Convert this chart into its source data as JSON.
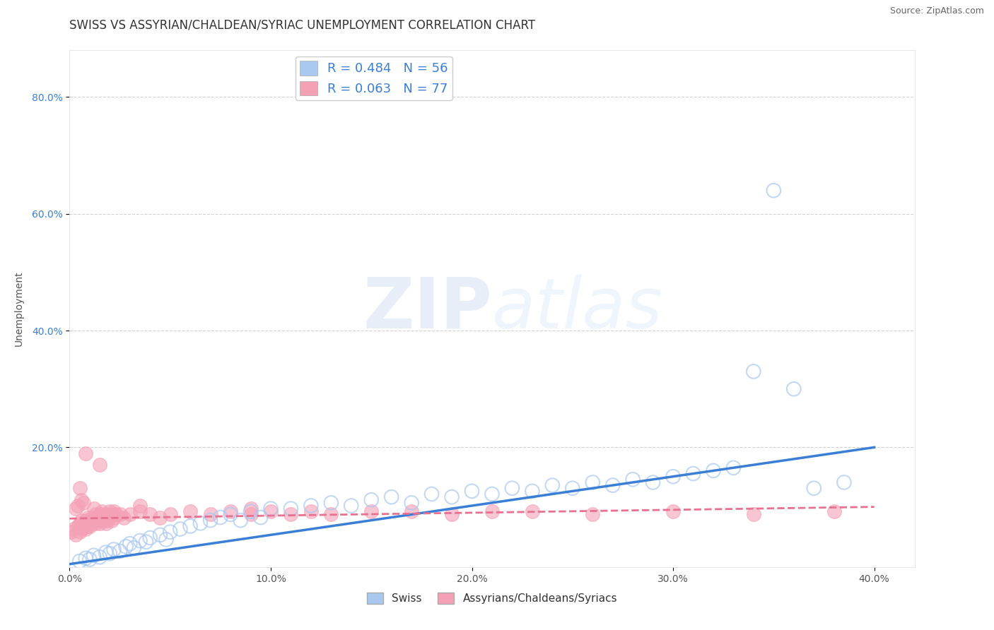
{
  "title": "SWISS VS ASSYRIAN/CHALDEAN/SYRIAC UNEMPLOYMENT CORRELATION CHART",
  "source": "Source: ZipAtlas.com",
  "ylabel": "Unemployment",
  "xlabel": "",
  "xlim": [
    0.0,
    0.42
  ],
  "ylim": [
    -0.005,
    0.88
  ],
  "xticks": [
    0.0,
    0.1,
    0.2,
    0.3,
    0.4
  ],
  "yticks": [
    0.2,
    0.4,
    0.6,
    0.8
  ],
  "ytick_labels": [
    "20.0%",
    "40.0%",
    "60.0%",
    "80.0%"
  ],
  "xtick_labels": [
    "0.0%",
    "10.0%",
    "20.0%",
    "30.0%",
    "40.0%"
  ],
  "legend_labels": [
    "Swiss",
    "Assyrians/Chaldeans/Syriacs"
  ],
  "swiss_color": "#a8c8f0",
  "assyrian_color": "#f4a0b5",
  "swiss_line_color": "#3a7fd5",
  "assyrian_line_color": "#e87090",
  "title_fontsize": 12,
  "label_fontsize": 10,
  "R_swiss": 0.484,
  "N_swiss": 56,
  "R_assyrian": 0.063,
  "N_assyrian": 77,
  "watermark": "ZIPatlas",
  "background_color": "#ffffff",
  "grid_color": "#cccccc",
  "swiss_points_x": [
    0.005,
    0.008,
    0.01,
    0.012,
    0.015,
    0.018,
    0.02,
    0.022,
    0.025,
    0.028,
    0.03,
    0.032,
    0.035,
    0.038,
    0.04,
    0.045,
    0.048,
    0.05,
    0.055,
    0.06,
    0.065,
    0.07,
    0.075,
    0.08,
    0.085,
    0.09,
    0.095,
    0.1,
    0.11,
    0.12,
    0.13,
    0.14,
    0.15,
    0.16,
    0.17,
    0.18,
    0.19,
    0.2,
    0.21,
    0.22,
    0.23,
    0.24,
    0.25,
    0.26,
    0.27,
    0.28,
    0.29,
    0.3,
    0.31,
    0.32,
    0.33,
    0.37,
    0.385,
    0.36,
    0.34,
    0.35
  ],
  "swiss_points_y": [
    0.005,
    0.01,
    0.008,
    0.015,
    0.012,
    0.02,
    0.018,
    0.025,
    0.022,
    0.03,
    0.035,
    0.028,
    0.04,
    0.038,
    0.045,
    0.05,
    0.042,
    0.055,
    0.06,
    0.065,
    0.07,
    0.075,
    0.08,
    0.085,
    0.075,
    0.09,
    0.08,
    0.095,
    0.095,
    0.1,
    0.105,
    0.1,
    0.11,
    0.115,
    0.105,
    0.12,
    0.115,
    0.125,
    0.12,
    0.13,
    0.125,
    0.135,
    0.13,
    0.14,
    0.135,
    0.145,
    0.14,
    0.15,
    0.155,
    0.16,
    0.165,
    0.13,
    0.14,
    0.3,
    0.33,
    0.64
  ],
  "ass_points_x": [
    0.001,
    0.002,
    0.003,
    0.004,
    0.005,
    0.005,
    0.006,
    0.006,
    0.007,
    0.007,
    0.008,
    0.008,
    0.009,
    0.009,
    0.01,
    0.01,
    0.01,
    0.011,
    0.011,
    0.012,
    0.012,
    0.013,
    0.013,
    0.014,
    0.014,
    0.015,
    0.015,
    0.015,
    0.016,
    0.016,
    0.017,
    0.017,
    0.018,
    0.018,
    0.019,
    0.019,
    0.02,
    0.02,
    0.021,
    0.021,
    0.022,
    0.022,
    0.023,
    0.025,
    0.027,
    0.03,
    0.035,
    0.04,
    0.045,
    0.05,
    0.06,
    0.07,
    0.08,
    0.09,
    0.1,
    0.11,
    0.12,
    0.13,
    0.15,
    0.17,
    0.19,
    0.21,
    0.23,
    0.26,
    0.3,
    0.34,
    0.38,
    0.005,
    0.008,
    0.015,
    0.003,
    0.004,
    0.006,
    0.007,
    0.012,
    0.035,
    0.09
  ],
  "ass_points_y": [
    0.055,
    0.06,
    0.05,
    0.065,
    0.07,
    0.055,
    0.06,
    0.075,
    0.065,
    0.07,
    0.06,
    0.075,
    0.065,
    0.08,
    0.07,
    0.065,
    0.075,
    0.08,
    0.07,
    0.075,
    0.08,
    0.07,
    0.085,
    0.075,
    0.08,
    0.07,
    0.085,
    0.075,
    0.08,
    0.09,
    0.075,
    0.085,
    0.07,
    0.08,
    0.085,
    0.075,
    0.08,
    0.09,
    0.085,
    0.075,
    0.08,
    0.09,
    0.085,
    0.085,
    0.08,
    0.085,
    0.09,
    0.085,
    0.08,
    0.085,
    0.09,
    0.085,
    0.09,
    0.085,
    0.09,
    0.085,
    0.09,
    0.085,
    0.09,
    0.09,
    0.085,
    0.09,
    0.09,
    0.085,
    0.09,
    0.085,
    0.09,
    0.13,
    0.19,
    0.17,
    0.095,
    0.1,
    0.11,
    0.105,
    0.095,
    0.1,
    0.095
  ]
}
